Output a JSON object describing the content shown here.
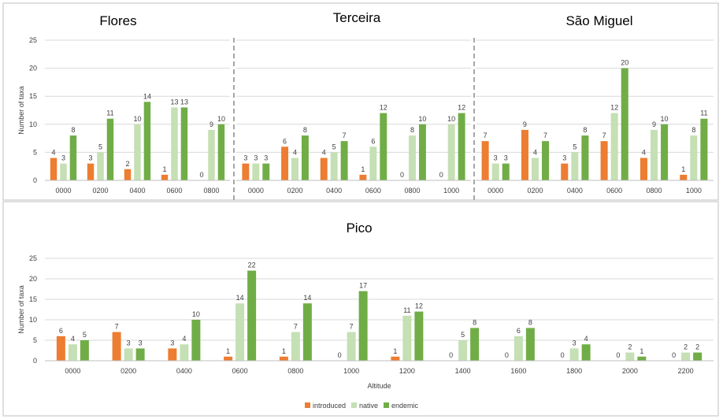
{
  "colors": {
    "introduced": "#ED7D31",
    "native": "#C5E0B4",
    "endemic": "#70AD47",
    "grid": "#d9d9d9",
    "separator": "#a6a6a6",
    "border": "#bfbfbf"
  },
  "legend": {
    "introduced": "introduced",
    "native": "native",
    "endemic": "endemic"
  },
  "chart_data": [
    {
      "type": "bar",
      "title": "Flores",
      "ylabel": "Number of taxa",
      "xlabel": "",
      "ylim": [
        0,
        25
      ],
      "yticks": [
        "0",
        "5",
        "10",
        "15",
        "20",
        "25"
      ],
      "categories": [
        "0000",
        "0200",
        "0400",
        "0600",
        "0800"
      ],
      "series": [
        {
          "name": "introduced",
          "values": [
            4,
            3,
            2,
            1,
            0
          ]
        },
        {
          "name": "native",
          "values": [
            3,
            5,
            10,
            13,
            9
          ]
        },
        {
          "name": "endemic",
          "values": [
            8,
            11,
            14,
            13,
            10
          ]
        }
      ]
    },
    {
      "type": "bar",
      "title": "Terceira",
      "ylabel": "",
      "xlabel": "",
      "ylim": [
        0,
        25
      ],
      "categories": [
        "0000",
        "0200",
        "0400",
        "0600",
        "0800",
        "1000"
      ],
      "series": [
        {
          "name": "introduced",
          "values": [
            3,
            6,
            4,
            1,
            0,
            0
          ]
        },
        {
          "name": "native",
          "values": [
            3,
            4,
            5,
            6,
            8,
            10
          ]
        },
        {
          "name": "endemic",
          "values": [
            3,
            8,
            7,
            12,
            10,
            12
          ]
        }
      ]
    },
    {
      "type": "bar",
      "title": "São Miguel",
      "ylabel": "",
      "xlabel": "",
      "ylim": [
        0,
        25
      ],
      "categories": [
        "0000",
        "0200",
        "0400",
        "0600",
        "0800",
        "1000"
      ],
      "series": [
        {
          "name": "introduced",
          "values": [
            7,
            9,
            3,
            7,
            4,
            1
          ]
        },
        {
          "name": "native",
          "values": [
            3,
            4,
            5,
            12,
            9,
            8
          ]
        },
        {
          "name": "endemic",
          "values": [
            3,
            7,
            8,
            20,
            10,
            11
          ]
        }
      ]
    },
    {
      "type": "bar",
      "title": "Pico",
      "ylabel": "Number of taxa",
      "xlabel": "Altitude",
      "ylim": [
        0,
        25
      ],
      "yticks": [
        "0",
        "5",
        "10",
        "15",
        "20",
        "25"
      ],
      "categories": [
        "0000",
        "0200",
        "0400",
        "0600",
        "0800",
        "1000",
        "1200",
        "1400",
        "1600",
        "1800",
        "2000",
        "2200"
      ],
      "series": [
        {
          "name": "introduced",
          "values": [
            6,
            7,
            3,
            1,
            1,
            0,
            1,
            0,
            0,
            0,
            0,
            0
          ]
        },
        {
          "name": "native",
          "values": [
            4,
            3,
            4,
            14,
            7,
            7,
            11,
            5,
            6,
            3,
            2,
            2
          ]
        },
        {
          "name": "endemic",
          "values": [
            5,
            3,
            10,
            22,
            14,
            17,
            12,
            8,
            8,
            4,
            1,
            2
          ]
        }
      ]
    }
  ]
}
